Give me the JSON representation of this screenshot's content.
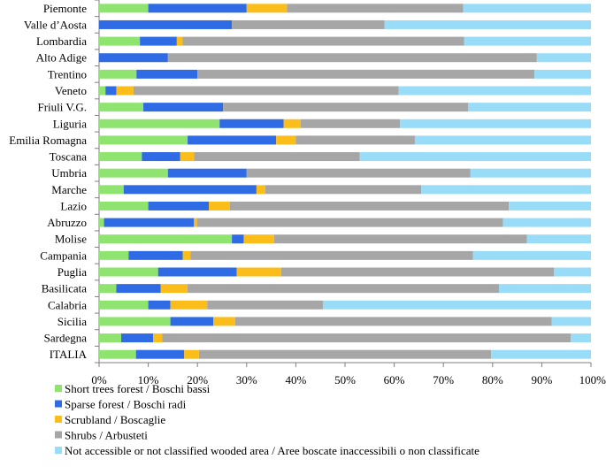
{
  "chart_data": {
    "type": "bar",
    "orientation": "horizontal",
    "stacked": "percent",
    "categories": [
      "Piemonte",
      "Valle d’Aosta",
      "Lombardia",
      "Alto Adige",
      "Trentino",
      "Veneto",
      "Friuli V.G.",
      "Liguria",
      "Emilia Romagna",
      "Toscana",
      "Umbria",
      "Marche",
      "Lazio",
      "Abruzzo",
      "Molise",
      "Campania",
      "Puglia",
      "Basilicata",
      "Calabria",
      "Sicilia",
      "Sardegna",
      "ITALIA"
    ],
    "series": [
      {
        "name": "Short trees forest / Boschi bassi",
        "color": "#8fe36f",
        "values": [
          10.0,
          0.0,
          8.3,
          0.0,
          7.6,
          1.3,
          9.0,
          24.5,
          18.0,
          8.7,
          14.0,
          5.0,
          10.0,
          1.0,
          27.0,
          6.0,
          12.0,
          3.5,
          10.0,
          14.5,
          4.5,
          7.5
        ]
      },
      {
        "name": "Sparse forest / Boschi radi",
        "color": "#2f6be4",
        "values": [
          20.0,
          27.0,
          7.5,
          14.0,
          12.4,
          2.2,
          16.2,
          13.0,
          18.0,
          7.8,
          16.0,
          27.0,
          12.3,
          18.3,
          2.4,
          11.0,
          16.0,
          9.0,
          4.5,
          8.7,
          6.5,
          9.8
        ]
      },
      {
        "name": "Scrubland / Boscaglie",
        "color": "#fbbd1a",
        "values": [
          8.2,
          0.0,
          1.2,
          0.0,
          0.0,
          3.5,
          0.0,
          3.5,
          4.0,
          2.8,
          0.0,
          1.8,
          4.3,
          0.6,
          6.2,
          1.6,
          9.0,
          5.5,
          7.5,
          4.5,
          1.8,
          3.0
        ]
      },
      {
        "name": "Shrubs / Arbusteti",
        "color": "#a6a6a6",
        "values": [
          35.8,
          31.0,
          57.2,
          75.0,
          68.5,
          53.9,
          49.8,
          20.2,
          24.2,
          33.7,
          45.5,
          31.7,
          56.7,
          62.2,
          51.4,
          57.4,
          55.5,
          63.3,
          23.5,
          64.3,
          83.1,
          59.4
        ]
      },
      {
        "name": "Not accessible or not classified wooded area / Aree boscate inaccessibili o non classificate",
        "color": "#99dcf7",
        "values": [
          26.0,
          42.0,
          25.8,
          11.0,
          11.5,
          39.1,
          25.0,
          38.8,
          35.8,
          47.0,
          24.5,
          34.5,
          16.7,
          17.9,
          13.0,
          24.0,
          7.5,
          18.7,
          54.5,
          8.0,
          4.1,
          20.3
        ]
      }
    ],
    "x_ticks": [
      "0%",
      "10%",
      "20%",
      "30%",
      "40%",
      "50%",
      "60%",
      "70%",
      "80%",
      "90%",
      "100%"
    ],
    "xlim": [
      0,
      100
    ],
    "grid": false,
    "legend_position": "bottom-left"
  }
}
